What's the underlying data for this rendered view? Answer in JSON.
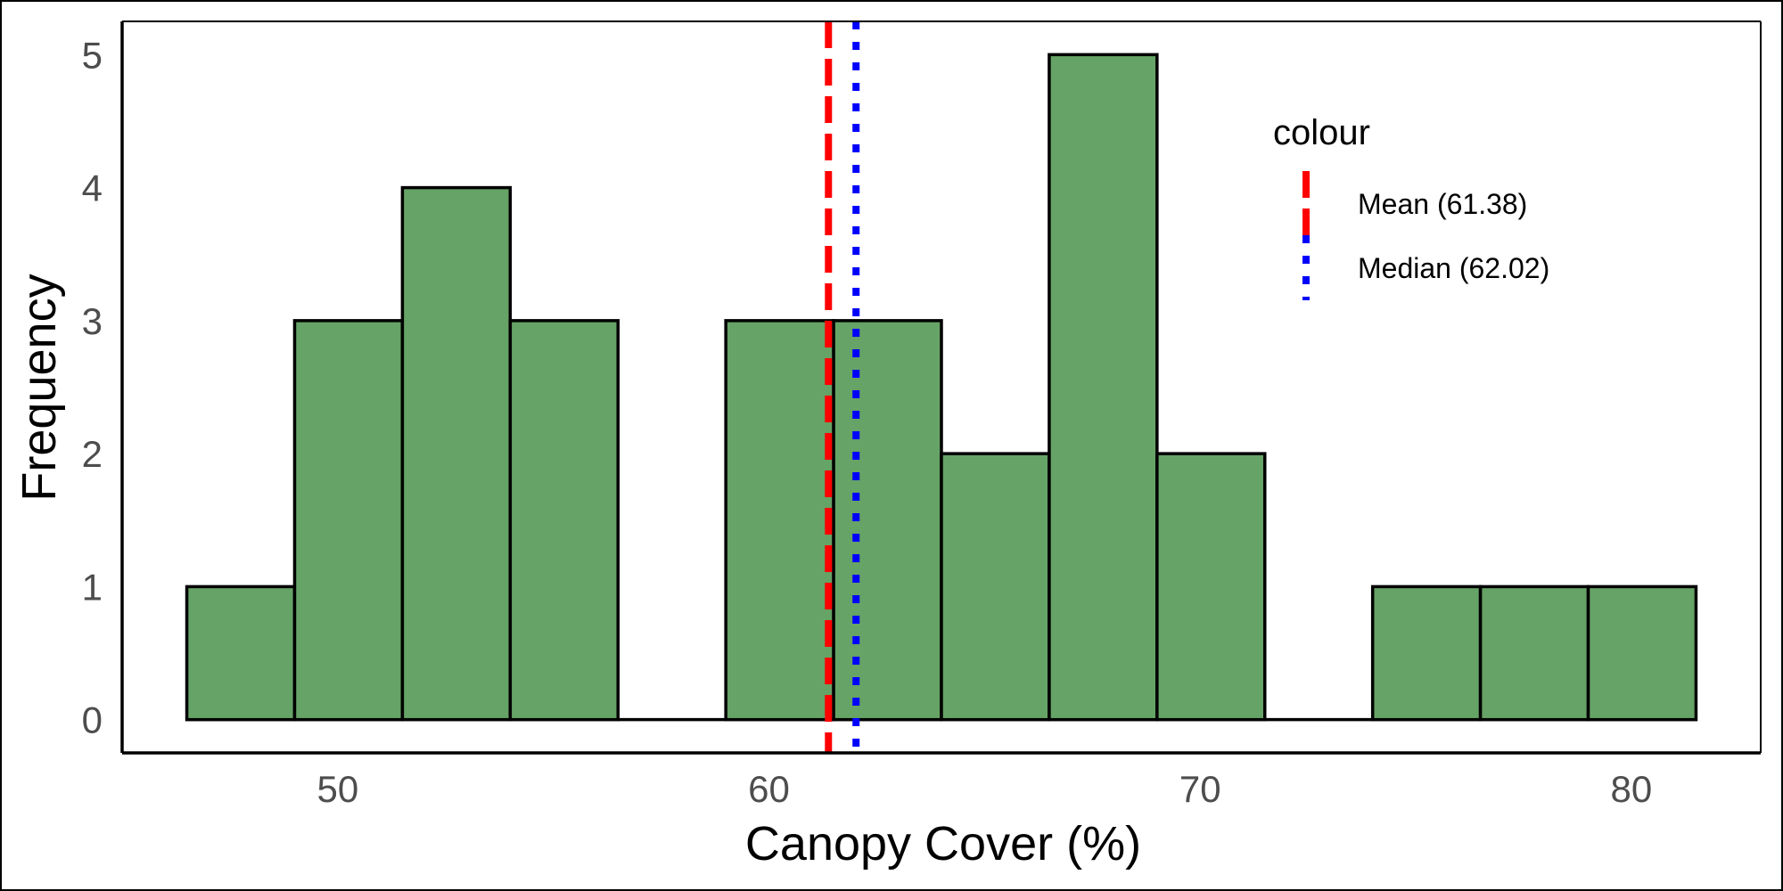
{
  "chart_data": {
    "type": "bar",
    "subtype": "histogram",
    "xlabel": "Canopy Cover (%)",
    "ylabel": "Frequency",
    "xlim": [
      45,
      83
    ],
    "ylim": [
      -0.25,
      5.25
    ],
    "x_ticks": [
      50,
      60,
      70,
      80
    ],
    "y_ticks": [
      0,
      1,
      2,
      3,
      4,
      5
    ],
    "bin_width": 2.5,
    "bins": [
      {
        "start": 46.5,
        "end": 49.0,
        "count": 1
      },
      {
        "start": 49.0,
        "end": 51.5,
        "count": 3
      },
      {
        "start": 51.5,
        "end": 54.0,
        "count": 4
      },
      {
        "start": 54.0,
        "end": 56.5,
        "count": 3
      },
      {
        "start": 56.5,
        "end": 59.0,
        "count": 0
      },
      {
        "start": 59.0,
        "end": 61.5,
        "count": 3
      },
      {
        "start": 61.5,
        "end": 64.0,
        "count": 3
      },
      {
        "start": 64.0,
        "end": 66.5,
        "count": 2
      },
      {
        "start": 66.5,
        "end": 69.0,
        "count": 5
      },
      {
        "start": 69.0,
        "end": 71.5,
        "count": 2
      },
      {
        "start": 71.5,
        "end": 74.0,
        "count": 0
      },
      {
        "start": 74.0,
        "end": 76.5,
        "count": 1
      },
      {
        "start": 76.5,
        "end": 79.0,
        "count": 1
      },
      {
        "start": 79.0,
        "end": 81.5,
        "count": 1
      }
    ],
    "bar_fill": "#66a366",
    "bar_stroke": "#000000",
    "reference_lines": [
      {
        "label": "Mean (61.38)",
        "value": 61.38,
        "color": "#ff0000",
        "style": "dashed"
      },
      {
        "label": "Median (62.02)",
        "value": 62.02,
        "color": "#0000ff",
        "style": "dotted"
      }
    ],
    "legend": {
      "title": "colour",
      "position": "top-right"
    },
    "grid": false
  }
}
